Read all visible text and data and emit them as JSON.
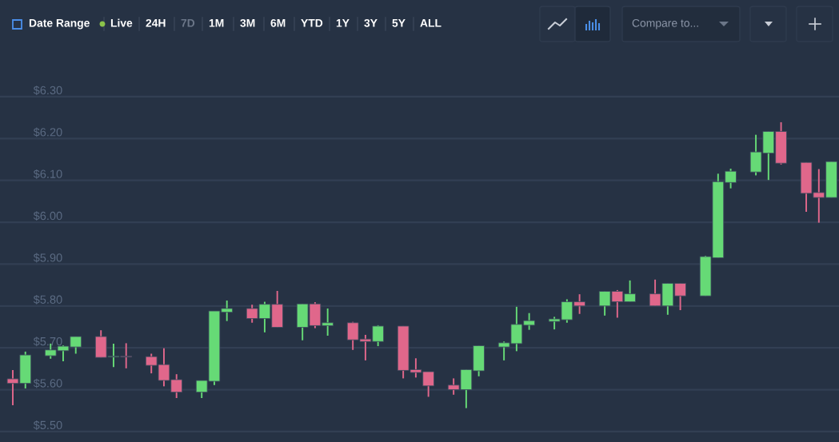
{
  "chart_data": {
    "type": "candlestick",
    "annotations": [
      "Date Range",
      "Live",
      "24H",
      "7D",
      "1M",
      "3M",
      "6M",
      "YTD",
      "1Y",
      "3Y",
      "5Y",
      "ALL",
      "Compare to..."
    ],
    "categories": [
      null,
      null,
      null,
      null,
      null,
      null,
      null,
      null,
      null,
      null,
      null,
      null,
      null,
      null,
      null,
      null,
      null,
      null,
      null,
      null,
      null,
      null,
      null,
      null,
      null,
      null,
      null,
      null,
      null,
      null,
      null,
      null,
      null,
      null,
      null,
      null,
      null,
      null,
      null,
      null,
      null,
      null,
      null,
      null,
      null,
      null,
      null,
      null,
      null,
      null,
      null,
      null,
      null,
      null,
      null,
      null,
      null,
      null,
      null,
      null,
      null,
      null,
      null,
      null,
      null,
      null
    ],
    "ohlc": [
      [
        5.626,
        5.647,
        5.563,
        5.615
      ],
      [
        5.615,
        5.691,
        5.603,
        5.683
      ],
      null,
      [
        5.681,
        5.71,
        5.674,
        5.695
      ],
      [
        5.693,
        5.706,
        5.668,
        5.704
      ],
      [
        5.702,
        5.727,
        5.686,
        5.727
      ],
      null,
      [
        5.727,
        5.742,
        5.677,
        5.677
      ],
      [
        5.678,
        5.71,
        5.654,
        5.68
      ],
      [
        5.68,
        5.711,
        5.651,
        5.678
      ],
      null,
      [
        5.679,
        5.686,
        5.639,
        5.658
      ],
      [
        5.66,
        5.699,
        5.608,
        5.622
      ],
      [
        5.624,
        5.637,
        5.58,
        5.594
      ],
      null,
      [
        5.594,
        5.622,
        5.58,
        5.622
      ],
      [
        5.62,
        5.788,
        5.611,
        5.788
      ],
      [
        5.785,
        5.813,
        5.764,
        5.794
      ],
      null,
      [
        5.794,
        5.803,
        5.76,
        5.77
      ],
      [
        5.77,
        5.81,
        5.737,
        5.804
      ],
      [
        5.804,
        5.836,
        5.749,
        5.749
      ],
      null,
      [
        5.749,
        5.805,
        5.718,
        5.805
      ],
      [
        5.805,
        5.809,
        5.747,
        5.753
      ],
      [
        5.753,
        5.794,
        5.729,
        5.76
      ],
      null,
      [
        5.76,
        5.762,
        5.695,
        5.719
      ],
      [
        5.721,
        5.731,
        5.67,
        5.715
      ],
      [
        5.715,
        5.754,
        5.704,
        5.752
      ],
      null,
      [
        5.752,
        5.752,
        5.627,
        5.646
      ],
      [
        5.648,
        5.675,
        5.629,
        5.641
      ],
      [
        5.643,
        5.643,
        5.583,
        5.609
      ],
      null,
      [
        5.611,
        5.627,
        5.588,
        5.6
      ],
      [
        5.6,
        5.648,
        5.556,
        5.648
      ],
      [
        5.645,
        5.705,
        5.632,
        5.705
      ],
      null,
      [
        5.702,
        5.715,
        5.67,
        5.712
      ],
      [
        5.71,
        5.798,
        5.692,
        5.756
      ],
      [
        5.754,
        5.783,
        5.743,
        5.765
      ],
      null,
      [
        5.763,
        5.774,
        5.744,
        5.769
      ],
      [
        5.767,
        5.816,
        5.76,
        5.81
      ],
      [
        5.81,
        5.828,
        5.781,
        5.8
      ],
      null,
      [
        5.8,
        5.835,
        5.777,
        5.835
      ],
      [
        5.835,
        5.838,
        5.772,
        5.81
      ],
      [
        5.81,
        5.861,
        5.81,
        5.829
      ],
      null,
      [
        5.829,
        5.863,
        5.8,
        5.8
      ],
      [
        5.8,
        5.854,
        5.779,
        5.854
      ],
      [
        5.854,
        5.854,
        5.79,
        5.824
      ],
      null,
      [
        5.824,
        5.92,
        5.824,
        5.918
      ],
      [
        5.915,
        6.116,
        5.915,
        6.097
      ],
      [
        6.095,
        6.128,
        6.081,
        6.122
      ],
      null,
      [
        6.12,
        6.209,
        6.112,
        6.168
      ],
      [
        6.165,
        6.217,
        6.101,
        6.217
      ],
      [
        6.217,
        6.239,
        6.138,
        6.141
      ],
      null,
      [
        6.143,
        6.143,
        6.025,
        6.069
      ],
      [
        6.071,
        6.127,
        5.999,
        6.059
      ],
      [
        6.059,
        6.145,
        6.059,
        6.145
      ]
    ],
    "colors": [
      "#e0678b",
      "#66da76",
      null,
      "#66da76",
      "#66da76",
      "#66da76",
      null,
      "#e0678b",
      "#66da76",
      "#e0678b",
      null,
      "#e0678b",
      "#e0678b",
      "#e0678b",
      null,
      "#66da76",
      "#66da76",
      "#66da76",
      null,
      "#e0678b",
      "#66da76",
      "#e0678b",
      null,
      "#66da76",
      "#e0678b",
      "#66da76",
      null,
      "#e0678b",
      "#e0678b",
      "#66da76",
      null,
      "#e0678b",
      "#e0678b",
      "#e0678b",
      null,
      "#e0678b",
      "#66da76",
      "#66da76",
      null,
      "#66da76",
      "#66da76",
      "#66da76",
      null,
      "#66da76",
      "#66da76",
      "#e0678b",
      null,
      "#66da76",
      "#e0678b",
      "#66da76",
      null,
      "#e0678b",
      "#66da76",
      "#e0678b",
      null,
      "#66da76",
      "#66da76",
      "#66da76",
      null,
      "#66da76",
      "#66da76",
      "#e0678b",
      null,
      "#e0678b",
      "#e0678b",
      "#66da76"
    ],
    "ylim": [
      5.475,
      6.531
    ],
    "yticks": [
      {
        "value": 5.5,
        "label": "$5.50"
      },
      {
        "value": 5.6,
        "label": "$5.60"
      },
      {
        "value": 5.7,
        "label": "$5.70"
      },
      {
        "value": 5.8,
        "label": "$5.80"
      },
      {
        "value": 5.9,
        "label": "$5.90"
      },
      {
        "value": 6.0,
        "label": "$6.00"
      },
      {
        "value": 6.1,
        "label": "$6.10"
      },
      {
        "value": 6.2,
        "label": "$6.20"
      },
      {
        "value": 6.3,
        "label": "$6.30"
      }
    ],
    "grid": "y"
  }
}
